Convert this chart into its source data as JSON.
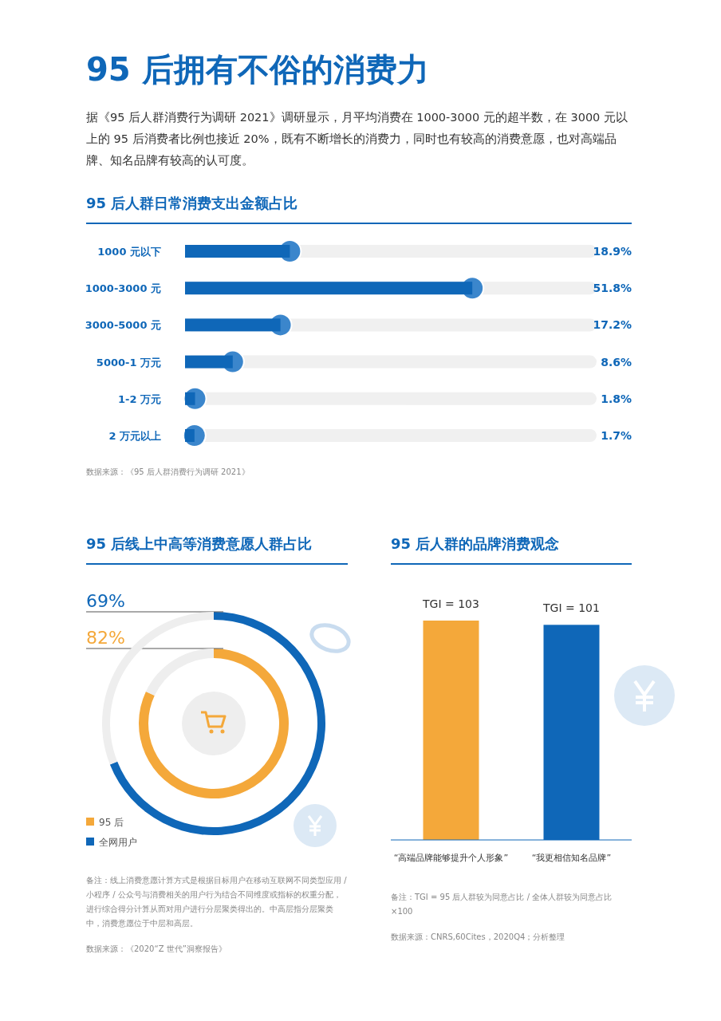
{
  "chart_data": [
    {
      "type": "other",
      "title": "95 后拥有不俗的消费力",
      "subtitle": "据《95 后人群消费行为调研 2021》调研显示，月平均消费在 1000-3000 元的超半数，在 3000 元以上的 95 后消费者比例也接近 20%，既有不断增长的消费力，同时也有较高的消费意愿，也对高端品牌、知名品牌有较高的认可度。"
    },
    {
      "type": "bar",
      "orientation": "horizontal",
      "title": "95 后人群日常消费支出金额占比",
      "categories": [
        "1000 元以下",
        "1000-3000 元",
        "3000-5000 元",
        "5000-1 万元",
        "1-2 万元",
        "2 万元以上"
      ],
      "values": [
        18.9,
        51.8,
        17.2,
        8.6,
        1.8,
        1.7
      ],
      "value_labels": [
        "18.9%",
        "51.8%",
        "17.2%",
        "8.6%",
        "1.8%",
        "1.7%"
      ],
      "color": "#0f67b8",
      "annotations": [
        "数据来源：《95 后人群消费行为调研 2021》"
      ]
    },
    {
      "type": "donut",
      "title": "95 后线上中高等消费意愿人群占比",
      "categories": [
        null,
        null
      ],
      "series": [
        {
          "name": "95 后",
          "colors": [
            "#f4a83a",
            "#eeeeee"
          ],
          "values": [
            82,
            18
          ],
          "value_labels": [
            "82%",
            null
          ]
        },
        {
          "name": "全网用户",
          "colors": [
            "#0f67b8",
            "#eeeeee"
          ],
          "values": [
            69,
            31
          ],
          "value_labels": [
            "69%",
            null
          ]
        }
      ],
      "legend": "bottom left",
      "annotations": [
        "备注：线上消费意愿计算方式是根据目标用户在移动互联网不同类型应用 / 小程序 / 公众号与消费相关的用户行为结合不同维度或指标的权重分配，进行综合得分计算从而对用户进行分层聚类得出的。中高层指分层聚类中，消费意愿位于中层和高层。",
        "数据来源：《2020“Z 世代”洞察报告》"
      ]
    },
    {
      "type": "bar",
      "title": "95 后人群的品牌消费观念",
      "categories": [
        "“高端品牌能够提升个人形象”",
        "“我更相信知名品牌”"
      ],
      "values": [
        103,
        101
      ],
      "colors": [
        "#f4a83a",
        "#0f67b8"
      ],
      "value_labels": [
        "TGI = 103",
        "TGI = 101"
      ],
      "annotations": [
        "备注：TGI = 95 后人群较为同意占比 / 全体人群较为同意占比 ×100",
        "数据来源：CNRS,60Cites，2020Q4；分析整理"
      ]
    }
  ]
}
